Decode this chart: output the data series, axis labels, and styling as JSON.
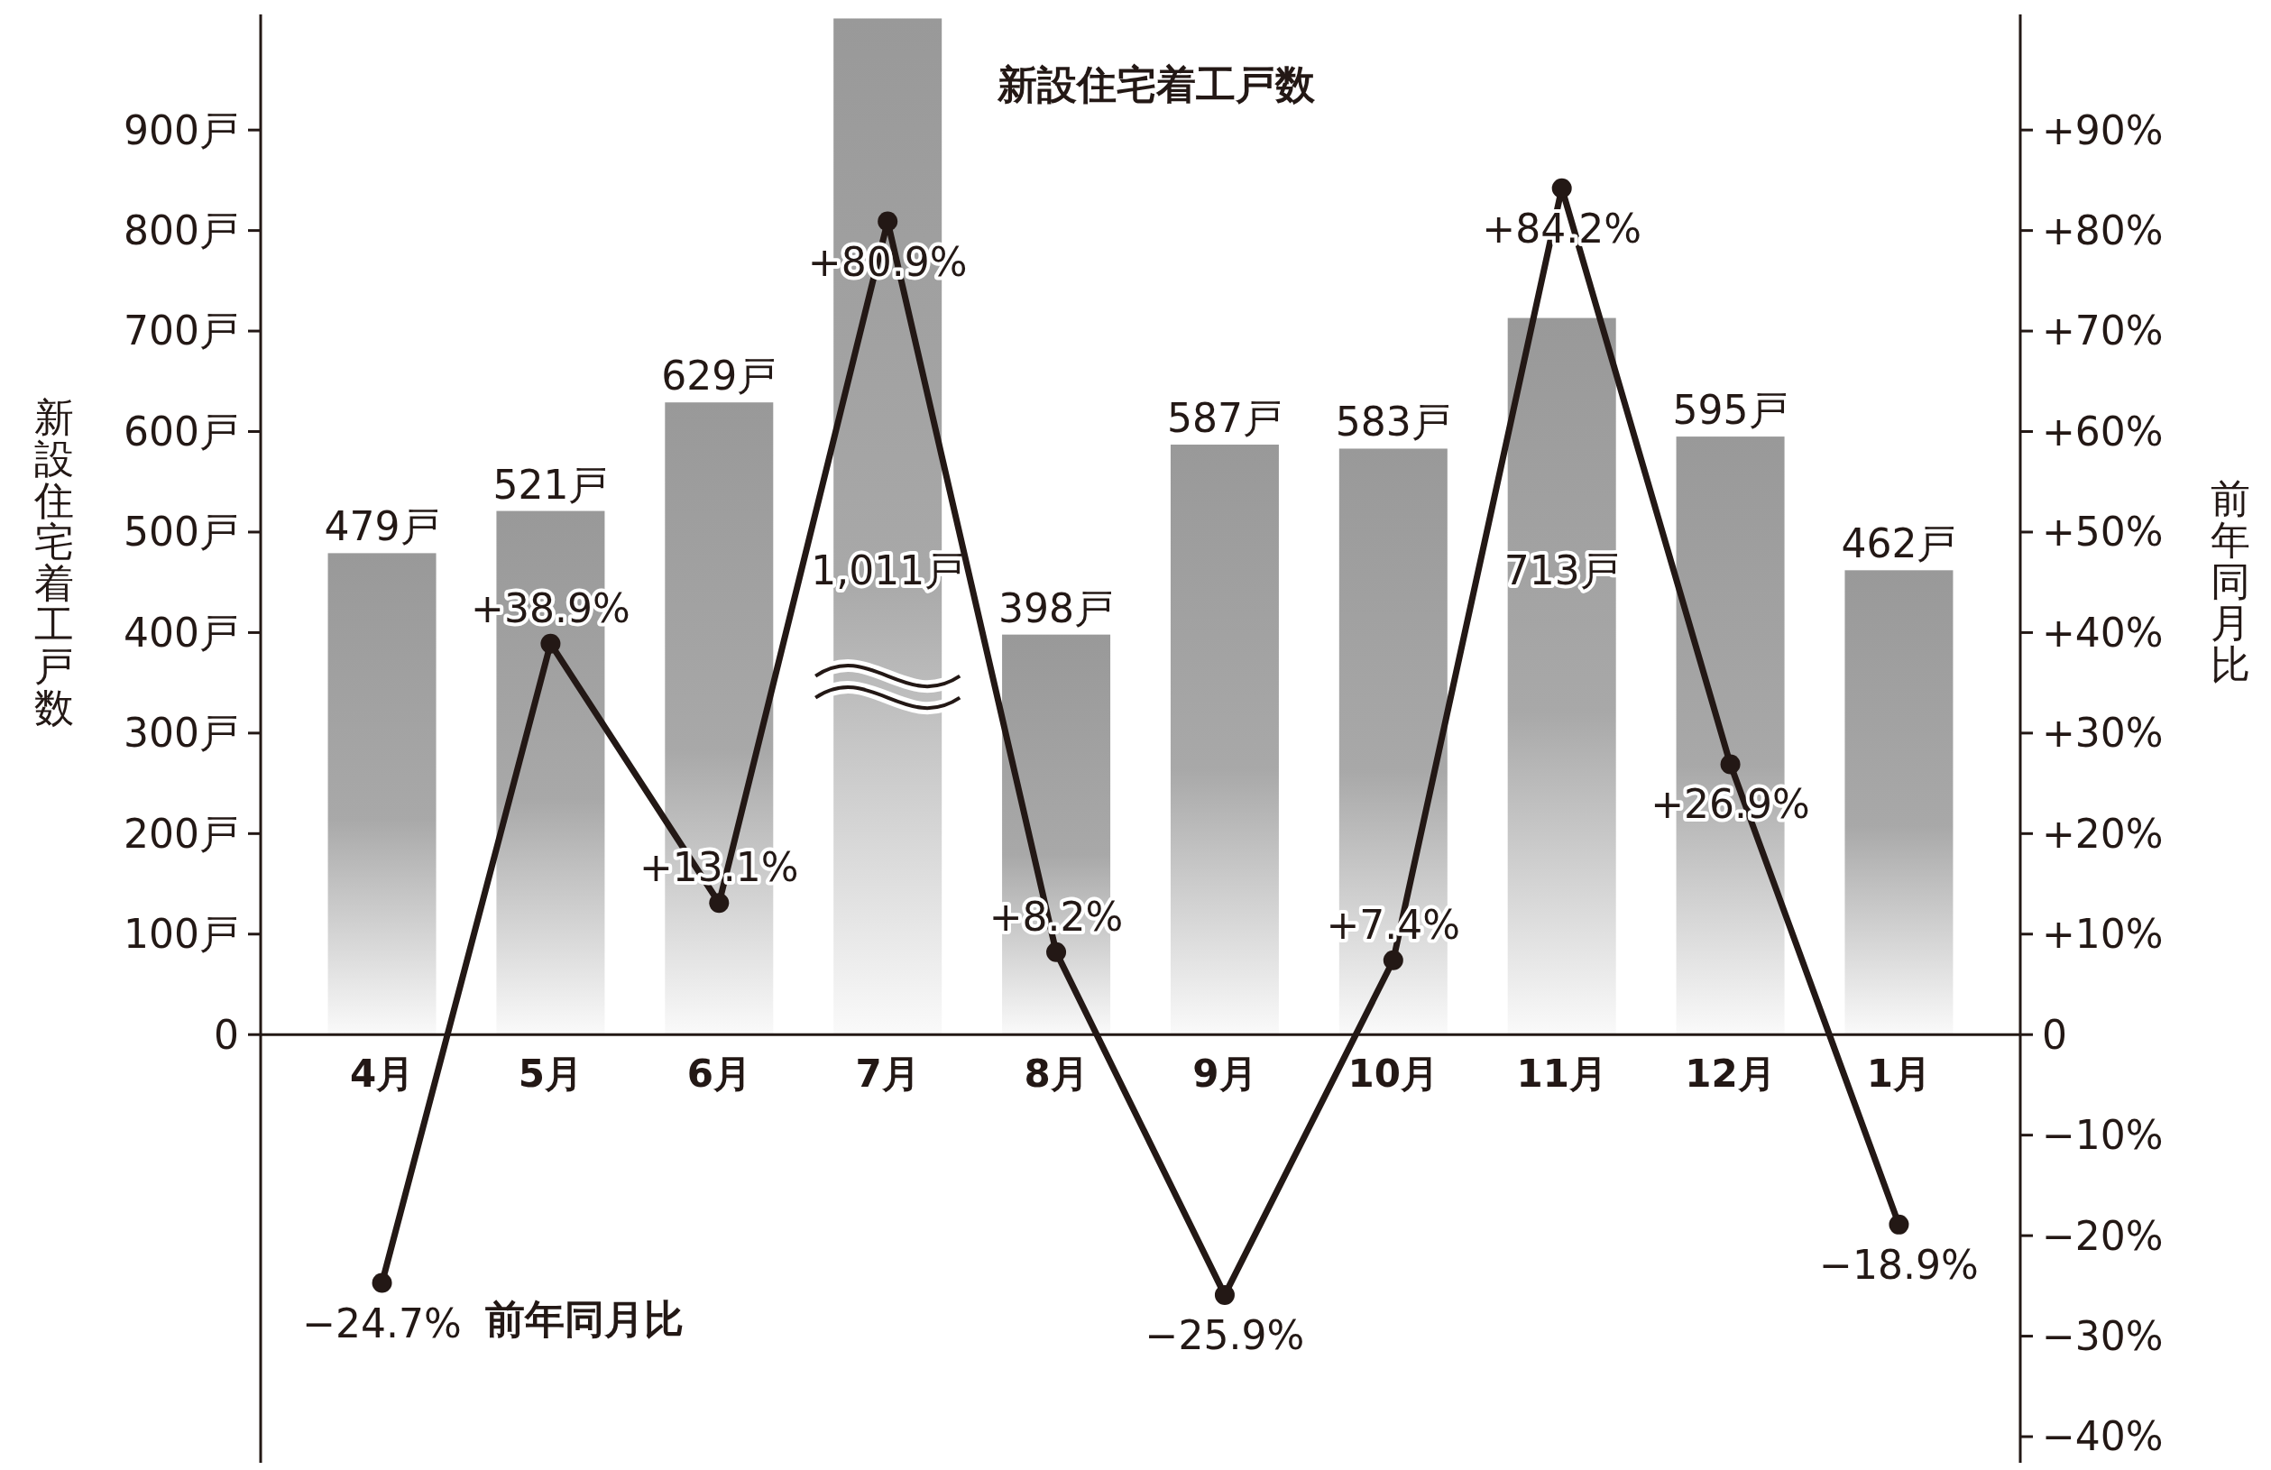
{
  "chart_data": {
    "type": "bar",
    "ylabel": "新設住宅着工戸数",
    "y2label": "前年同月比",
    "categories": [
      "4月",
      "5月",
      "6月",
      "7月",
      "8月",
      "9月",
      "10月",
      "11月",
      "12月",
      "1月"
    ],
    "series": [
      {
        "name": "新設住宅着工戸数",
        "color": "#999999",
        "values": [
          479,
          521,
          629,
          1011,
          398,
          587,
          583,
          713,
          595,
          462
        ],
        "value_labels": [
          "479戸",
          "521戸",
          "629戸",
          "1,011戸",
          "398戸",
          "587戸",
          "583戸",
          "713戸",
          "595戸",
          "462戸"
        ]
      },
      {
        "name": "前年同月比",
        "type": "line",
        "axis": "y2",
        "color": "#231815",
        "marker": "circle",
        "values": [
          -24.7,
          38.9,
          13.1,
          80.9,
          8.2,
          -25.9,
          7.4,
          84.2,
          26.9,
          -18.9
        ],
        "value_labels": [
          "−24.7%",
          "+38.9%",
          "+13.1%",
          "+80.9%",
          "+8.2%",
          "−25.9%",
          "+7.4%",
          "+84.2%",
          "+26.9%",
          "−18.9%"
        ]
      }
    ],
    "ylim": [
      -426,
      1015
    ],
    "yticks": [
      {
        "value": 0,
        "label": "0"
      },
      {
        "value": 100,
        "label": "100戸"
      },
      {
        "value": 200,
        "label": "200戸"
      },
      {
        "value": 300,
        "label": "300戸"
      },
      {
        "value": 400,
        "label": "400戸"
      },
      {
        "value": 500,
        "label": "500戸"
      },
      {
        "value": 600,
        "label": "600戸"
      },
      {
        "value": 700,
        "label": "700戸"
      },
      {
        "value": 800,
        "label": "800戸"
      },
      {
        "value": 900,
        "label": "900戸"
      }
    ],
    "y2lim": [
      -42.6,
      101.5
    ],
    "y2ticks": [
      {
        "value": -40,
        "label": "−40%"
      },
      {
        "value": -30,
        "label": "−30%"
      },
      {
        "value": -20,
        "label": "−20%"
      },
      {
        "value": -10,
        "label": "−10%"
      },
      {
        "value": 0,
        "label": "0"
      },
      {
        "value": 10,
        "label": "+10%"
      },
      {
        "value": 20,
        "label": "+20%"
      },
      {
        "value": 30,
        "label": "+30%"
      },
      {
        "value": 40,
        "label": "+40%"
      },
      {
        "value": 50,
        "label": "+50%"
      },
      {
        "value": 60,
        "label": "+60%"
      },
      {
        "value": 70,
        "label": "+70%"
      },
      {
        "value": 80,
        "label": "+80%"
      },
      {
        "value": 90,
        "label": "+90%"
      }
    ],
    "grid": false
  }
}
